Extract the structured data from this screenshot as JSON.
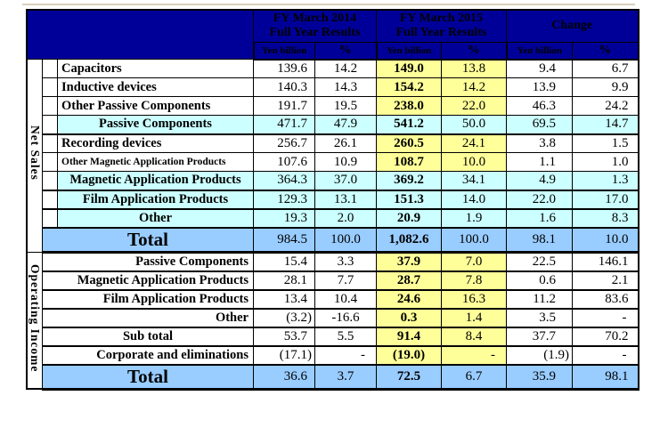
{
  "page": {
    "background": "#ffffff",
    "top_rule_color": "#d9cfbc"
  },
  "table": {
    "colors": {
      "header_navy": "#000099",
      "header_text": "#ffffff",
      "highlight_yellow": "#ffff99",
      "subtotal_cyan": "#ccffff",
      "total_blue": "#99ccff",
      "border_black": "#000000"
    },
    "header": {
      "groups": [
        {
          "line1": "FY March 2014",
          "line2": "Full Year Results"
        },
        {
          "line1": "FY March 2015",
          "line2": "Full Year Results"
        },
        {
          "line1": "Change",
          "line2": ""
        }
      ],
      "subheaders": [
        "Yen billion",
        "%",
        "Yen billion",
        "%",
        "Yen billion",
        "%"
      ]
    },
    "sections": [
      {
        "name": "Net Sales",
        "rows": [
          {
            "label": "Capacitors",
            "type": "detail",
            "bb": "thin",
            "values": [
              "139.6",
              "14.2",
              "149.0",
              "13.8",
              "9.4",
              "6.7"
            ]
          },
          {
            "label": "Inductive devices",
            "type": "detail",
            "bb": "thin",
            "values": [
              "140.3",
              "14.3",
              "154.2",
              "14.2",
              "13.9",
              "9.9"
            ]
          },
          {
            "label": "Other Passive Components",
            "type": "detail",
            "bb": "thin",
            "values": [
              "191.7",
              "19.5",
              "238.0",
              "22.0",
              "46.3",
              "24.2"
            ]
          },
          {
            "label": "Passive Components",
            "type": "subtotal",
            "bb": "thick",
            "values": [
              "471.7",
              "47.9",
              "541.2",
              "50.0",
              "69.5",
              "14.7"
            ]
          },
          {
            "label": "Recording devices",
            "type": "detail",
            "bb": "thin",
            "values": [
              "256.7",
              "26.1",
              "260.5",
              "24.1",
              "3.8",
              "1.5"
            ]
          },
          {
            "label": "Other Magnetic Application Products",
            "type": "detail",
            "small": true,
            "bb": "thin",
            "values": [
              "107.6",
              "10.9",
              "108.7",
              "10.0",
              "1.1",
              "1.0"
            ]
          },
          {
            "label": "Magnetic Application Products",
            "type": "subtotal",
            "bb": "thick",
            "values": [
              "364.3",
              "37.0",
              "369.2",
              "34.1",
              "4.9",
              "1.3"
            ]
          },
          {
            "label": "Film Application Products",
            "type": "subtotal",
            "bb": "thick",
            "values": [
              "129.3",
              "13.1",
              "151.3",
              "14.0",
              "22.0",
              "17.0"
            ]
          },
          {
            "label": "Other",
            "type": "subtotal",
            "bb": "thick",
            "values": [
              "19.3",
              "2.0",
              "20.9",
              "1.9",
              "1.6",
              "8.3"
            ]
          },
          {
            "label": "Total",
            "type": "total",
            "bb": "section",
            "values": [
              "984.5",
              "100.0",
              "1,082.6",
              "100.0",
              "98.1",
              "10.0"
            ]
          }
        ]
      },
      {
        "name": "Operating Income",
        "rows": [
          {
            "label": "Passive Components",
            "type": "op",
            "bb": "thick",
            "values": [
              "15.4",
              "3.3",
              "37.9",
              "7.0",
              "22.5",
              "146.1"
            ]
          },
          {
            "label": "Magnetic Application Products",
            "type": "op",
            "bb": "thick",
            "values": [
              "28.1",
              "7.7",
              "28.7",
              "7.8",
              "0.6",
              "2.1"
            ]
          },
          {
            "label": "Film Application Products",
            "type": "op",
            "bb": "thick",
            "values": [
              "13.4",
              "10.4",
              "24.6",
              "16.3",
              "11.2",
              "83.6"
            ]
          },
          {
            "label": "Other",
            "type": "op",
            "bb": "thick",
            "values": [
              "(3.2)",
              "-16.6",
              "0.3",
              "1.4",
              "3.5",
              "-"
            ]
          },
          {
            "label": "Sub total",
            "type": "op-center",
            "bb": "thick",
            "values": [
              "53.7",
              "5.5",
              "91.4",
              "8.4",
              "37.7",
              "70.2"
            ]
          },
          {
            "label": "Corporate and eliminations",
            "type": "op",
            "bb": "thick",
            "values": [
              "(17.1)",
              "-",
              "(19.0)",
              "-",
              "(1.9)",
              "-"
            ]
          },
          {
            "label": "Total",
            "type": "total",
            "bb": "section",
            "values": [
              "36.6",
              "3.7",
              "72.5",
              "6.7",
              "35.9",
              "98.1"
            ]
          }
        ]
      }
    ]
  }
}
